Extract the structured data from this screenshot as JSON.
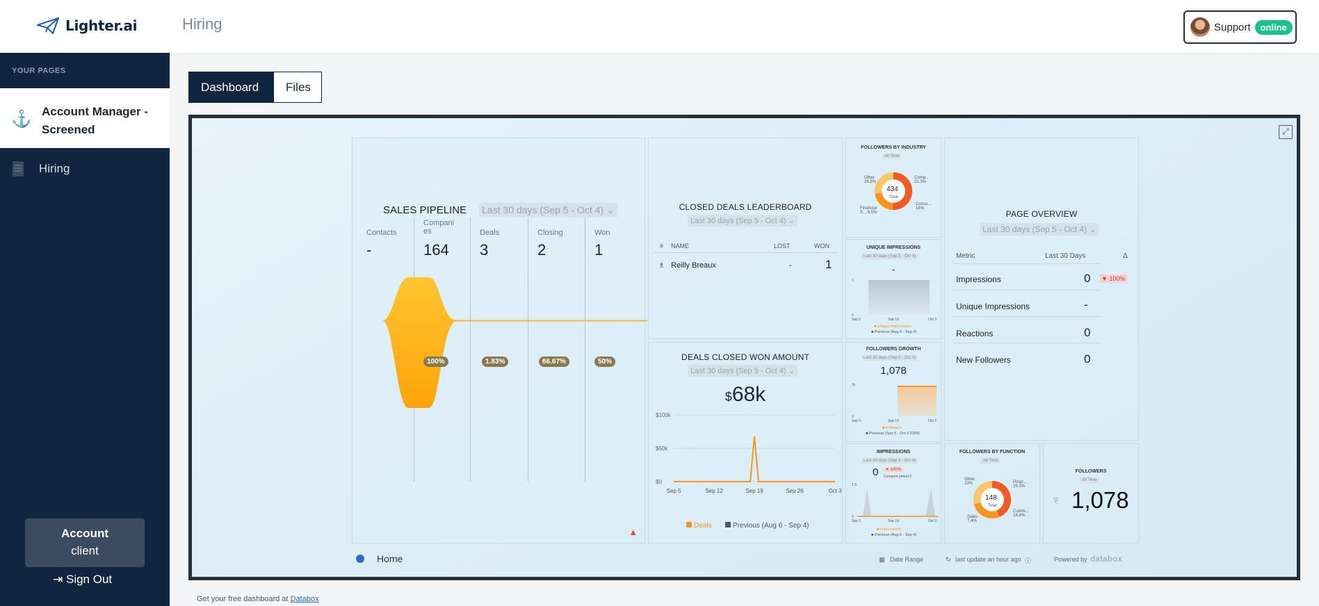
{
  "header": {
    "brand": "Lighter.ai",
    "page_title": "Hiring",
    "support_label": "Support",
    "support_status": "online"
  },
  "sidebar": {
    "section_label": "YOUR PAGES",
    "items": [
      {
        "label": "Account Manager - Screened",
        "icon": "anchor-icon",
        "active": true
      },
      {
        "label": "Hiring",
        "icon": "building-icon",
        "active": false
      }
    ],
    "account_title": "Account",
    "account_sub": "client",
    "signout_label": "Sign Out"
  },
  "tabs": [
    {
      "label": "Dashboard",
      "active": true
    },
    {
      "label": "Files",
      "active": false
    }
  ],
  "dashboard": {
    "sales_pipeline": {
      "title": "SALES PIPELINE",
      "date_range": "Last 30 days (Sep 5 - Oct 4)",
      "stages": [
        {
          "label": "Contacts",
          "value": "-"
        },
        {
          "label": "Compani es",
          "value": "164"
        },
        {
          "label": "Deals",
          "value": "3"
        },
        {
          "label": "Closing",
          "value": "2"
        },
        {
          "label": "Won",
          "value": "1"
        }
      ],
      "percents": [
        "100%",
        "1.83%",
        "66.67%",
        "50%"
      ]
    },
    "leaderboard": {
      "title": "CLOSED DEALS LEADERBOARD",
      "date_range": "Last 30 days (Sep 5 - Oct 4)",
      "headers": [
        "#",
        "NAME",
        "LOST",
        "WON"
      ],
      "rows": [
        {
          "rank": "",
          "name": "Reilly Breaux",
          "lost": "-",
          "won": "1"
        }
      ]
    },
    "won_amount": {
      "title": "DEALS CLOSED WON AMOUNT",
      "date_range": "Last 30 days (Sep 5 - Oct 4)",
      "currency": "$",
      "value": "68k",
      "y_ticks": [
        "$100k",
        "$50k",
        "$0"
      ],
      "x_ticks": [
        "Sep 5",
        "Sep 12",
        "Sep 19",
        "Sep 26",
        "Oct 3"
      ],
      "legend_current": "Deals",
      "legend_previous": "Previous (Aug 6 - Sep 4)"
    },
    "followers_industry": {
      "title": "FOLLOWERS BY INDUSTRY",
      "filter": "All Time",
      "total": "434",
      "total_label": "Total",
      "labels": [
        "Other 26.5%",
        "Comp... 21.3%",
        "Consu... 16%",
        "Financial S... 6.5%"
      ]
    },
    "unique_impressions": {
      "title": "UNIQUE IMPRESSIONS",
      "date_range": "Last 30 days (Sep 5 - Oct 4)",
      "value": "-",
      "y_ticks": [
        "1",
        "0"
      ],
      "x_ticks": [
        "Sep 5",
        "Sep 19",
        "Oct 3"
      ],
      "legend_current": "Unique Impressions",
      "legend_previous": "Previous (Aug 6 - Sep 4)"
    },
    "followers_growth": {
      "title": "FOLLOWERS GROWTH",
      "date_range": "Last 30 days (Sep 5 - Oct 4)",
      "value": "1,078",
      "y_ticks": [
        "1k",
        "0"
      ],
      "x_ticks": [
        "Sep 5",
        "Sep 19",
        "Oct 3"
      ],
      "legend_current": "Followers",
      "legend_previous": "Previous (Sep 5 - Oct 4 2020)"
    },
    "impressions": {
      "title": "IMPRESSIONS",
      "date_range": "Last 30 days (Sep 5 - Oct 4)",
      "value": "0",
      "delta": "▼ 100%",
      "compare": "Compare period 2",
      "y_ticks": [
        "1.5",
        "0"
      ],
      "x_ticks": [
        "Sep 5",
        "Sep 19",
        "Oct 3"
      ],
      "legend_current": "Impressions",
      "legend_previous": "Previous (Aug 6 - Sep 4)"
    },
    "page_overview": {
      "title": "PAGE OVERVIEW",
      "date_range": "Last 30 days (Sep 5 - Oct 4)",
      "col_metric": "Metric",
      "col_period": "Last 30 Days",
      "col_delta": "Δ",
      "rows": [
        {
          "label": "Impressions",
          "value": "0",
          "delta": "▼ 100%"
        },
        {
          "label": "Unique Impressions",
          "value": "-",
          "delta": ""
        },
        {
          "label": "Reactions",
          "value": "0",
          "delta": ""
        },
        {
          "label": "New Followers",
          "value": "0",
          "delta": ""
        }
      ]
    },
    "followers_function": {
      "title": "FOLLOWERS BY FUNCTION",
      "filter": "All Time",
      "total": "148",
      "total_label": "Total",
      "labels": [
        "Other 23%",
        "Progr... 29.1%",
        "Comm... 16.9%",
        "Sales 7.4%"
      ]
    },
    "followers": {
      "title": "FOLLOWERS",
      "filter": "All Time",
      "value": "1,078"
    },
    "footer": {
      "home": "Home",
      "date_range": "Date Range",
      "last_update": "last update an hour ago",
      "powered_by": "Powered by",
      "powered_brand": "databox"
    }
  },
  "bottom_note": {
    "prefix": "Get your free dashboard at ",
    "link": "Databox"
  },
  "chart_data": [
    {
      "type": "line",
      "title": "DEALS CLOSED WON AMOUNT",
      "x": [
        "Sep 5",
        "Sep 12",
        "Sep 19",
        "Sep 26",
        "Oct 3"
      ],
      "series": [
        {
          "name": "Deals",
          "values": [
            0,
            0,
            68000,
            0,
            0
          ]
        }
      ],
      "ylim": [
        0,
        100000
      ]
    }
  ],
  "colors": {
    "brand_navy": "#122540",
    "accent_orange": "#f7941d",
    "online_green": "#19c28a"
  }
}
